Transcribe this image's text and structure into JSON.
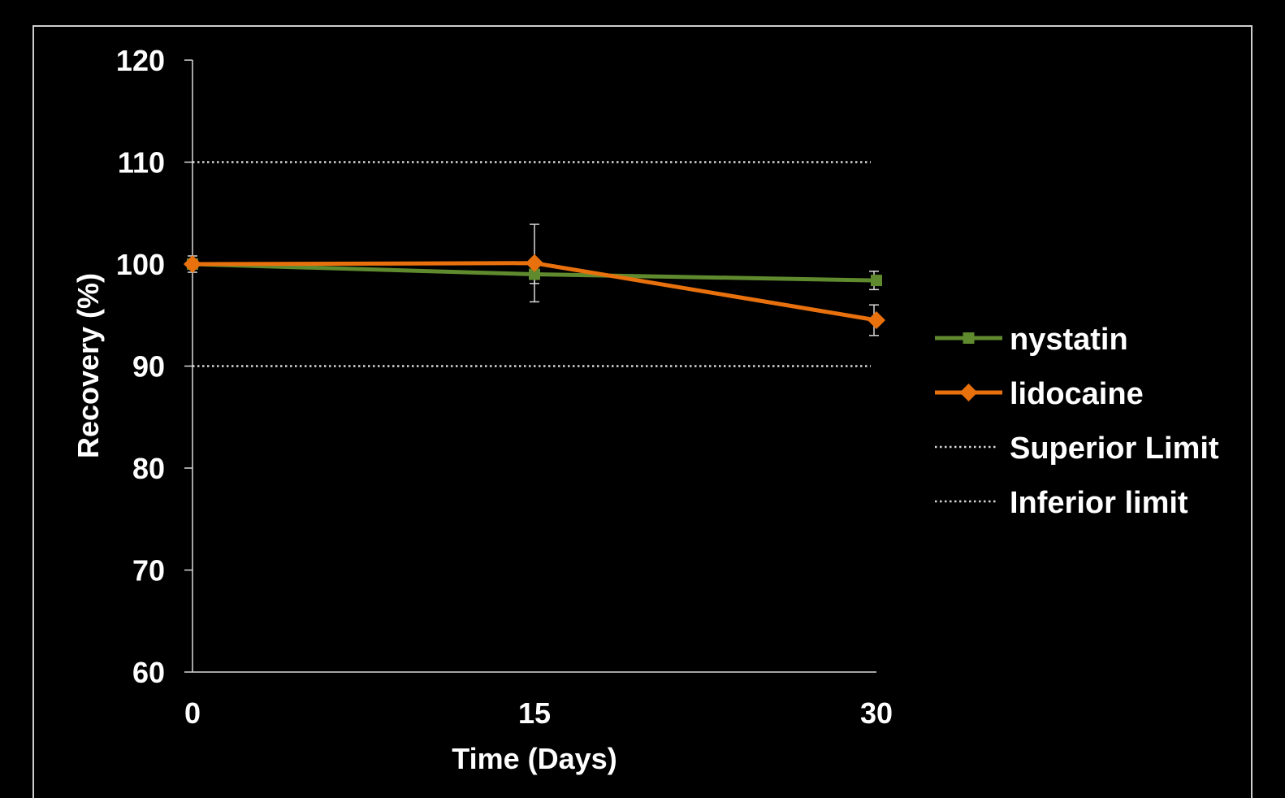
{
  "chart_data": {
    "type": "line",
    "xlabel": "Time (Days)",
    "ylabel": "Recovery (%)",
    "x": [
      0,
      15,
      30
    ],
    "x_tick_labels": [
      "0",
      "15",
      "30"
    ],
    "ylim": [
      60,
      120
    ],
    "y_ticks": [
      60,
      70,
      80,
      90,
      100,
      110,
      120
    ],
    "y_tick_labels": [
      "60",
      "70",
      "80",
      "90",
      "100",
      "110",
      "120"
    ],
    "grid": false,
    "legend_position": "right",
    "series": [
      {
        "name": "nystatin",
        "color": "#5f8a2e",
        "marker": "square",
        "values": [
          100,
          99,
          98.4
        ],
        "error": [
          0.8,
          0.9,
          0.9
        ]
      },
      {
        "name": "lidocaine",
        "color": "#e8710e",
        "marker": "diamond",
        "values": [
          100,
          100.1,
          94.5
        ],
        "error": [
          0.3,
          3.8,
          1.5
        ]
      }
    ],
    "reference_lines": [
      {
        "name": "Superior Limit",
        "value": 110,
        "color": "#d9d9d9",
        "style": "dotted"
      },
      {
        "name": "Inferior limit",
        "value": 90,
        "color": "#d9d9d9",
        "style": "dotted"
      }
    ]
  }
}
